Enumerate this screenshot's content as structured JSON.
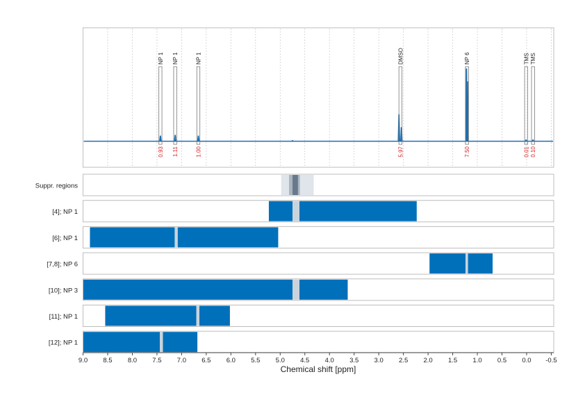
{
  "chart_data": {
    "type": "line",
    "xlabel": "Chemical shift [ppm]",
    "xlim": [
      9.0,
      -0.55
    ],
    "x_ticks": [
      "9.0",
      "8.5",
      "8.0",
      "7.5",
      "7.0",
      "6.5",
      "6.0",
      "5.5",
      "5.0",
      "4.5",
      "4.0",
      "3.5",
      "3.0",
      "2.5",
      "2.0",
      "1.5",
      "1.0",
      "0.5",
      "0.0",
      "-0.5"
    ],
    "grid": true,
    "spectrum": {
      "color": "#1b6fb0",
      "peaks": [
        {
          "x": 7.43,
          "height": 0.07
        },
        {
          "x": 7.13,
          "height": 0.08
        },
        {
          "x": 6.66,
          "height": 0.07
        },
        {
          "x": 4.75,
          "height": 0.01
        },
        {
          "x": 2.59,
          "height": 0.35
        },
        {
          "x": 2.54,
          "height": 0.18
        },
        {
          "x": 1.22,
          "height": 0.95
        },
        {
          "x": 1.2,
          "height": 0.78
        },
        {
          "x": 0.01,
          "height": 0.02
        },
        {
          "x": -0.13,
          "height": 0.02
        }
      ]
    },
    "annotations": [
      {
        "label": "NP 1",
        "x": 7.43,
        "integral": "0.93"
      },
      {
        "label": "NP 1",
        "x": 7.13,
        "integral": "1.11"
      },
      {
        "label": "NP 1",
        "x": 6.66,
        "integral": "1.00"
      },
      {
        "label": "DMSO",
        "x": 2.56,
        "integral": "5.97"
      },
      {
        "label": "NP 6",
        "x": 1.21,
        "integral": "7.50"
      },
      {
        "label": "TMS",
        "x": 0.01,
        "integral": "0.01"
      },
      {
        "label": "TMS",
        "x": -0.13,
        "integral": "0.10"
      }
    ],
    "suppressed_regions": {
      "label": "Suppr. regions",
      "outer": [
        4.98,
        4.32
      ],
      "inner": [
        4.82,
        4.6
      ],
      "core": [
        4.75,
        4.64
      ]
    },
    "rows": [
      {
        "label": "[4]; NP 1",
        "bars": [
          [
            5.23,
            4.75
          ],
          [
            4.61,
            2.23
          ]
        ],
        "gap": [
          4.75,
          4.61
        ]
      },
      {
        "label": "[6]; NP 1",
        "bars": [
          [
            8.86,
            7.14
          ],
          [
            7.08,
            5.04
          ]
        ],
        "gap": [
          7.14,
          7.08
        ]
      },
      {
        "label": "[7,8]; NP 6",
        "bars": [
          [
            1.97,
            1.24
          ],
          [
            1.19,
            0.69
          ]
        ],
        "gap": [
          1.24,
          1.19
        ]
      },
      {
        "label": "[10]; NP 3",
        "bars": [
          [
            9.0,
            4.75
          ],
          [
            4.61,
            3.63
          ]
        ],
        "gap": [
          4.75,
          4.61
        ]
      },
      {
        "label": "[11]; NP 1",
        "bars": [
          [
            8.55,
            6.7
          ],
          [
            6.64,
            6.02
          ]
        ],
        "gap": [
          6.7,
          6.64
        ]
      },
      {
        "label": "[12]; NP 1",
        "bars": [
          [
            9.0,
            7.44
          ],
          [
            7.38,
            6.68
          ]
        ],
        "gap": [
          7.44,
          7.38
        ]
      }
    ],
    "colors": {
      "bar": "#0070ba",
      "gap": "#c9d3dc",
      "region_outer": "#dfe5eb",
      "region_inner": "#a9b6c1",
      "region_core": "#67798a",
      "integral": "#d62020",
      "grid": "#c8c8c8",
      "frame": "#bdbdbd"
    }
  }
}
